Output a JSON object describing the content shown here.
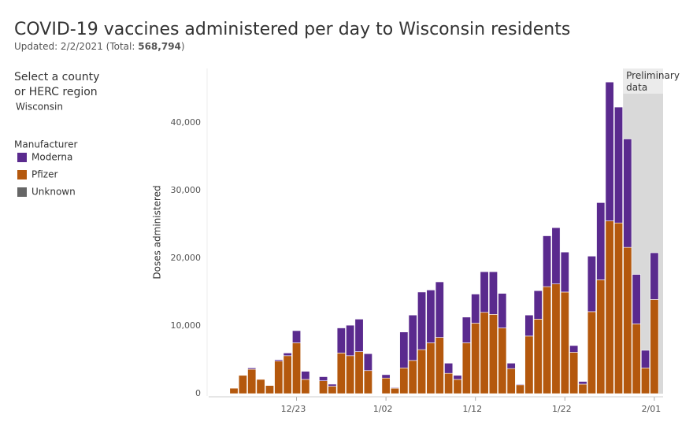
{
  "title": "COVID-19 vaccines administered per day to Wisconsin residents",
  "subtitle": "Updated: 2/2/2021 (Total:",
  "subtitle_total": "568,794",
  "subtitle_end": ")",
  "filter": {
    "label": "Select a county or HERC region",
    "value": "Wisconsin"
  },
  "legend_title": "Manufacturer",
  "chart_data": {
    "type": "stacked_bar",
    "y_label": "Doses administered",
    "categories": [
      null,
      null,
      null,
      null,
      null,
      null,
      null,
      "12/23",
      null,
      null,
      null,
      null,
      null,
      null,
      null,
      null,
      null,
      "1/02",
      null,
      null,
      null,
      null,
      null,
      null,
      null,
      null,
      null,
      "1/12",
      null,
      null,
      null,
      null,
      null,
      null,
      null,
      null,
      null,
      "1/22",
      null,
      null,
      null,
      null,
      null,
      null,
      null,
      null,
      null,
      "2/01"
    ],
    "series": [
      {
        "name": "Pfizer",
        "color": "#b4580d",
        "values": [
          800,
          2700,
          3600,
          2100,
          1200,
          4800,
          5600,
          7500,
          2100,
          0,
          1900,
          1100,
          6000,
          5600,
          6200,
          3400,
          0,
          2300,
          800,
          3800,
          4900,
          6500,
          7500,
          8300,
          3000,
          2100,
          7500,
          10400,
          12000,
          11700,
          9700,
          3700,
          1300,
          8500,
          11000,
          15800,
          16200,
          15000,
          6100,
          1400,
          12100,
          16800,
          25500,
          25200,
          21600,
          10300,
          3800,
          13900
        ]
      },
      {
        "name": "Moderna",
        "color": "#5a2a8e",
        "values": [
          0,
          0,
          200,
          0,
          0,
          200,
          400,
          1800,
          1200,
          0,
          600,
          300,
          3700,
          4500,
          4800,
          2500,
          0,
          500,
          100,
          5300,
          6700,
          8500,
          7800,
          8200,
          1500,
          600,
          3800,
          4300,
          6000,
          6300,
          5100,
          800,
          100,
          3100,
          4200,
          7500,
          8300,
          5900,
          1000,
          400,
          8200,
          11400,
          20500,
          17100,
          16000,
          7300,
          2600,
          6900
        ]
      },
      {
        "name": "Unknown",
        "color": "#666666",
        "values": [
          0,
          0,
          0,
          0,
          0,
          0,
          0,
          0,
          0,
          0,
          0,
          0,
          0,
          0,
          0,
          0,
          0,
          0,
          0,
          0,
          0,
          0,
          0,
          0,
          0,
          0,
          0,
          0,
          0,
          0,
          0,
          0,
          0,
          0,
          0,
          0,
          0,
          0,
          0,
          0,
          0,
          0,
          0,
          0,
          0,
          0,
          0,
          0
        ]
      }
    ],
    "legend_order": [
      1,
      0,
      2
    ],
    "ylim": [
      0,
      48000
    ],
    "yticks": [
      0,
      {
        "value": 10000,
        "label": "10,000"
      },
      {
        "value": 20000,
        "label": "20,000"
      },
      {
        "value": 30000,
        "label": "30,000"
      },
      {
        "value": 40000,
        "label": "40,000"
      }
    ],
    "grid": false,
    "preliminary": {
      "label": "Preliminary data",
      "start": 44
    }
  }
}
